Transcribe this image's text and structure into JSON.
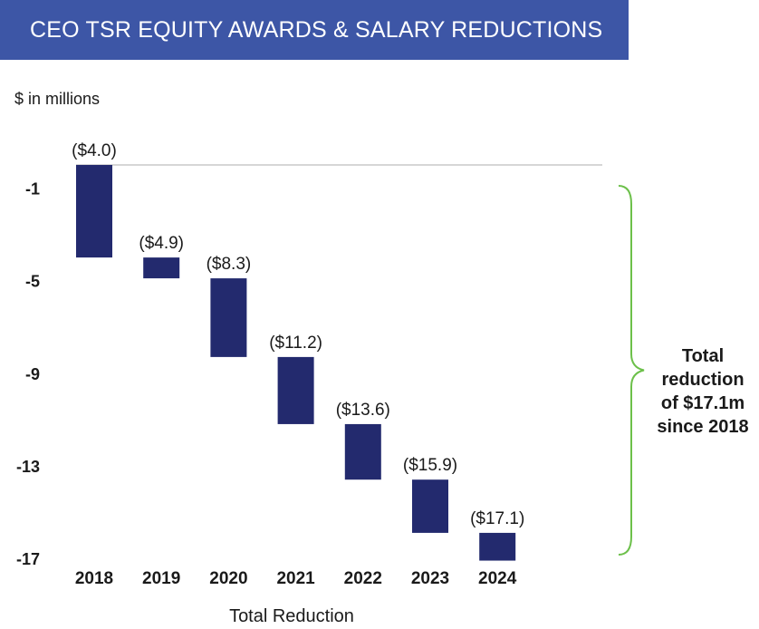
{
  "header": {
    "title": "CEO TSR EQUITY AWARDS & SALARY REDUCTIONS"
  },
  "colors": {
    "bar": "#232a6e",
    "header": "#3d56a6",
    "brace": "#6cc04a",
    "baseline": "#c8c8c8"
  },
  "chart_data": {
    "type": "bar",
    "subtype": "waterfall",
    "title": "CEO TSR EQUITY AWARDS & SALARY REDUCTIONS",
    "unit_label": "$ in millions",
    "xlabel": "Total Reduction",
    "ylabel": "",
    "ylim": [
      -17,
      0
    ],
    "yticks": [
      -1,
      -5,
      -9,
      -13,
      -17
    ],
    "ytick_labels": [
      "-1",
      "-5",
      "-9",
      "-13",
      "-17"
    ],
    "categories": [
      "2018",
      "2019",
      "2020",
      "2021",
      "2022",
      "2023",
      "2024"
    ],
    "cumulative": [
      -4.0,
      -4.9,
      -8.3,
      -11.2,
      -13.6,
      -15.9,
      -17.1
    ],
    "data_labels": [
      "($4.0)",
      "($4.9)",
      "($8.3)",
      "($11.2)",
      "($13.6)",
      "($15.9)",
      "($17.1)"
    ],
    "annotation": {
      "lines": [
        "Total",
        "reduction",
        "of $17.1m",
        "since 2018"
      ]
    }
  }
}
